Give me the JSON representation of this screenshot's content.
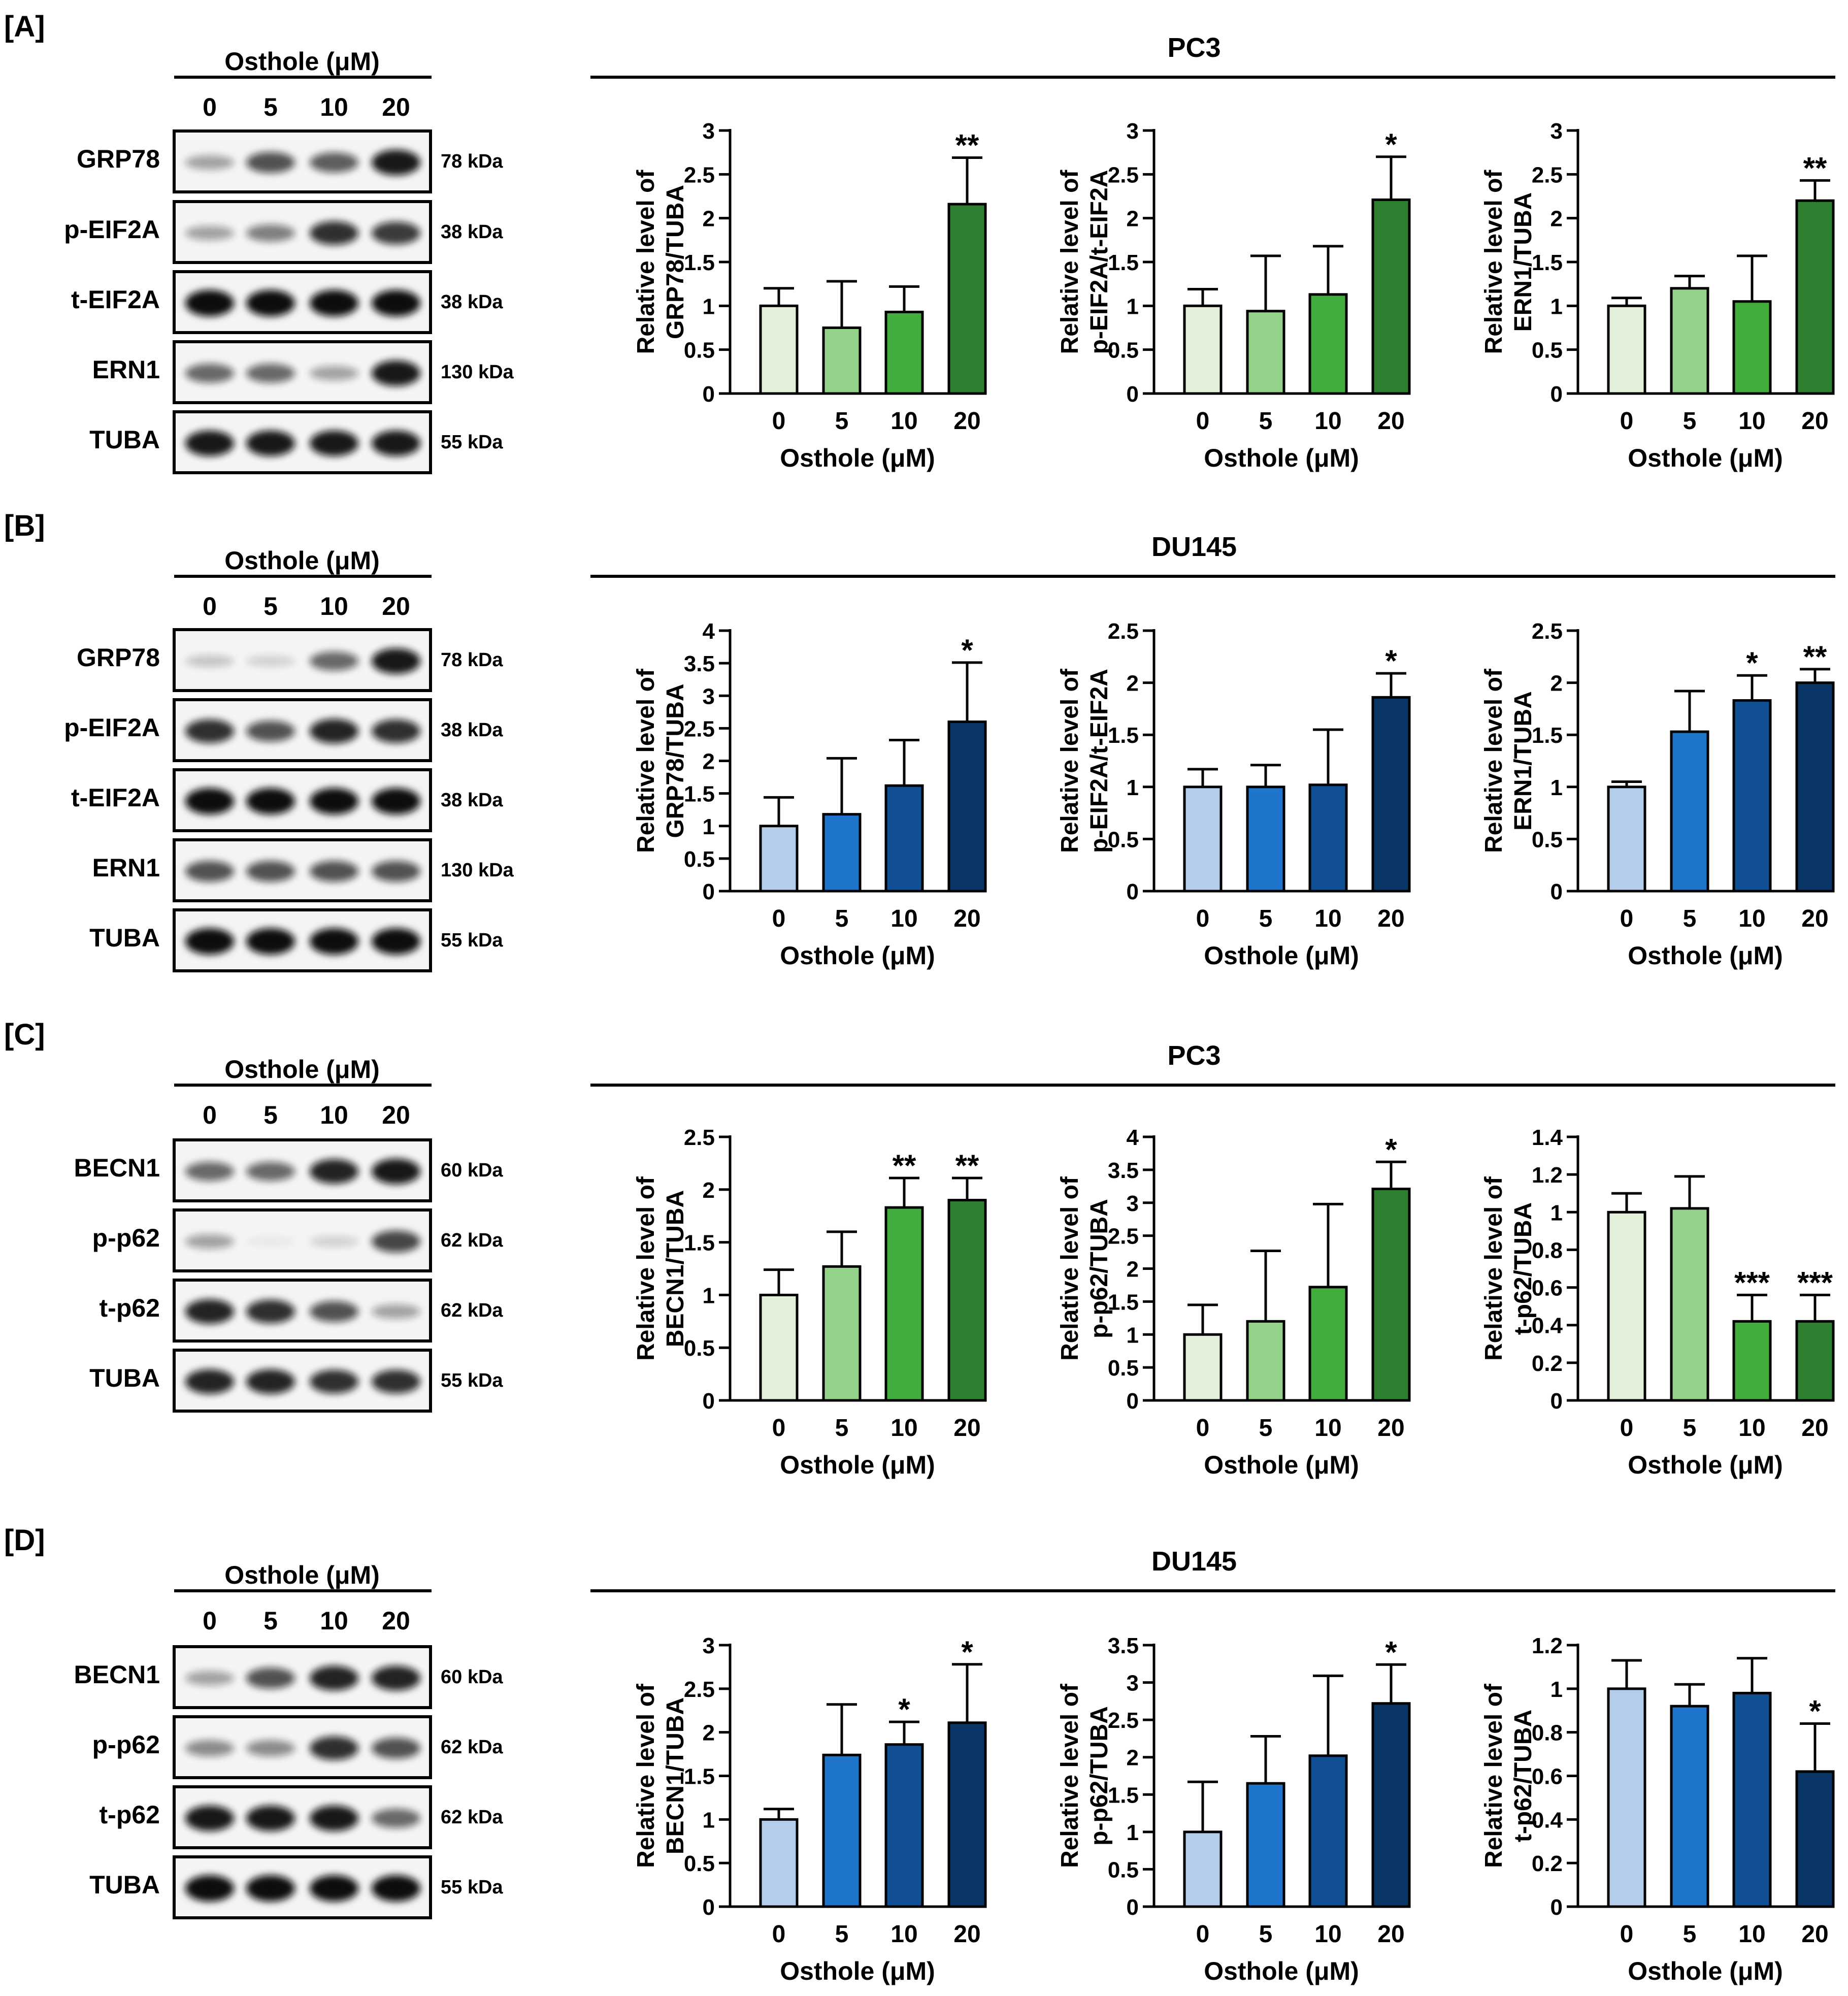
{
  "panels": [
    {
      "label": "[A]",
      "cell_line": "PC3",
      "treatment_header": "Osthole (μM)",
      "doses": [
        "0",
        "5",
        "10",
        "20"
      ],
      "blots": [
        {
          "protein": "GRP78",
          "kda": "78 kDa",
          "intensity": [
            0.35,
            0.7,
            0.65,
            0.95
          ]
        },
        {
          "protein": "p-EIF2A",
          "kda": "38 kDa",
          "intensity": [
            0.35,
            0.5,
            0.85,
            0.8
          ]
        },
        {
          "protein": "t-EIF2A",
          "kda": "38 kDa",
          "intensity": [
            1,
            1,
            1,
            1
          ]
        },
        {
          "protein": "ERN1",
          "kda": "130 kDa",
          "intensity": [
            0.6,
            0.6,
            0.35,
            0.95
          ]
        },
        {
          "protein": "TUBA",
          "kda": "55 kDa",
          "intensity": [
            0.95,
            0.95,
            0.95,
            0.95
          ]
        }
      ]
    },
    {
      "label": "[B]",
      "cell_line": "DU145",
      "treatment_header": "Osthole (μM)",
      "doses": [
        "0",
        "5",
        "10",
        "20"
      ],
      "blots": [
        {
          "protein": "GRP78",
          "kda": "78 kDa",
          "intensity": [
            0.2,
            0.15,
            0.6,
            0.95
          ]
        },
        {
          "protein": "p-EIF2A",
          "kda": "38 kDa",
          "intensity": [
            0.85,
            0.7,
            0.9,
            0.85
          ]
        },
        {
          "protein": "t-EIF2A",
          "kda": "38 kDa",
          "intensity": [
            1,
            1,
            1,
            1
          ]
        },
        {
          "protein": "ERN1",
          "kda": "130 kDa",
          "intensity": [
            0.7,
            0.7,
            0.7,
            0.7
          ]
        },
        {
          "protein": "TUBA",
          "kda": "55 kDa",
          "intensity": [
            1,
            1,
            1,
            1
          ]
        }
      ]
    },
    {
      "label": "[C]",
      "cell_line": "PC3",
      "treatment_header": "Osthole (μM)",
      "doses": [
        "0",
        "5",
        "10",
        "20"
      ],
      "blots": [
        {
          "protein": "BECN1",
          "kda": "60 kDa",
          "intensity": [
            0.6,
            0.6,
            0.9,
            0.95
          ]
        },
        {
          "protein": "p-p62",
          "kda": "62 kDa",
          "intensity": [
            0.35,
            0.05,
            0.15,
            0.75
          ]
        },
        {
          "protein": "t-p62",
          "kda": "62 kDa",
          "intensity": [
            0.9,
            0.85,
            0.7,
            0.35
          ]
        },
        {
          "protein": "TUBA",
          "kda": "55 kDa",
          "intensity": [
            0.9,
            0.9,
            0.85,
            0.85
          ]
        }
      ]
    },
    {
      "label": "[D]",
      "cell_line": "DU145",
      "treatment_header": "Osthole (μM)",
      "doses": [
        "0",
        "5",
        "10",
        "20"
      ],
      "blots": [
        {
          "protein": "BECN1",
          "kda": "60 kDa",
          "intensity": [
            0.35,
            0.7,
            0.9,
            0.9
          ]
        },
        {
          "protein": "p-p62",
          "kda": "62 kDa",
          "intensity": [
            0.45,
            0.45,
            0.85,
            0.7
          ]
        },
        {
          "protein": "t-p62",
          "kda": "62 kDa",
          "intensity": [
            0.95,
            0.95,
            0.95,
            0.6
          ]
        },
        {
          "protein": "TUBA",
          "kda": "55 kDa",
          "intensity": [
            1,
            1,
            1,
            1
          ]
        }
      ]
    }
  ],
  "colors": {
    "green": [
      "#e2f0d9",
      "#94d289",
      "#41ad3c",
      "#2e8030"
    ],
    "blue": [
      "#b4cdea",
      "#1f74cc",
      "#114f94",
      "#0a3567"
    ]
  },
  "chart_data": [
    {
      "panel": "A",
      "palette": "green",
      "type": "bar",
      "categories": [
        "0",
        "5",
        "10",
        "20"
      ],
      "values": [
        1.0,
        0.75,
        0.93,
        2.16
      ],
      "errors": [
        0.2,
        0.53,
        0.29,
        0.53
      ],
      "significance": [
        "",
        "",
        "",
        "**"
      ],
      "ylabel_lines": [
        "Relative level of",
        "GRP78/TUBA"
      ],
      "xlabel": "Osthole (μM)",
      "ylim": [
        0,
        3
      ],
      "yticks": [
        "0",
        "0.5",
        "1",
        "1.5",
        "2",
        "2.5",
        "3"
      ]
    },
    {
      "panel": "A",
      "palette": "green",
      "type": "bar",
      "categories": [
        "0",
        "5",
        "10",
        "20"
      ],
      "values": [
        1.0,
        0.94,
        1.13,
        2.21
      ],
      "errors": [
        0.19,
        0.63,
        0.55,
        0.49
      ],
      "significance": [
        "",
        "",
        "",
        "*"
      ],
      "ylabel_lines": [
        "Relative level of",
        "p-EIF2A/t-EIF2A"
      ],
      "xlabel": "Osthole (μM)",
      "ylim": [
        0,
        3
      ],
      "yticks": [
        "0",
        "0.5",
        "1",
        "1.5",
        "2",
        "2.5",
        "3"
      ]
    },
    {
      "panel": "A",
      "palette": "green",
      "type": "bar",
      "categories": [
        "0",
        "5",
        "10",
        "20"
      ],
      "values": [
        1.0,
        1.2,
        1.05,
        2.2
      ],
      "errors": [
        0.09,
        0.14,
        0.52,
        0.23
      ],
      "significance": [
        "",
        "",
        "",
        "**"
      ],
      "ylabel_lines": [
        "Relative level of",
        "ERN1/TUBA"
      ],
      "xlabel": "Osthole (μM)",
      "ylim": [
        0,
        3
      ],
      "yticks": [
        "0",
        "0.5",
        "1",
        "1.5",
        "2",
        "2.5",
        "3"
      ]
    },
    {
      "panel": "B",
      "palette": "blue",
      "type": "bar",
      "categories": [
        "0",
        "5",
        "10",
        "20"
      ],
      "values": [
        1.0,
        1.18,
        1.62,
        2.6
      ],
      "errors": [
        0.44,
        0.86,
        0.7,
        0.91
      ],
      "significance": [
        "",
        "",
        "",
        "*"
      ],
      "ylabel_lines": [
        "Relative level of",
        "GRP78/TUBA"
      ],
      "xlabel": "Osthole (μM)",
      "ylim": [
        0,
        4
      ],
      "yticks": [
        "0",
        "0.5",
        "1",
        "1.5",
        "2",
        "2.5",
        "3",
        "3.5",
        "4"
      ]
    },
    {
      "panel": "B",
      "palette": "blue",
      "type": "bar",
      "categories": [
        "0",
        "5",
        "10",
        "20"
      ],
      "values": [
        1.0,
        1.0,
        1.02,
        1.86
      ],
      "errors": [
        0.17,
        0.21,
        0.53,
        0.23
      ],
      "significance": [
        "",
        "",
        "",
        "*"
      ],
      "ylabel_lines": [
        "Relative level of",
        "p-EIF2A/t-EIF2A"
      ],
      "xlabel": "Osthole (μM)",
      "ylim": [
        0,
        2.5
      ],
      "yticks": [
        "0",
        "0.5",
        "1",
        "1.5",
        "2",
        "2.5"
      ]
    },
    {
      "panel": "B",
      "palette": "blue",
      "type": "bar",
      "categories": [
        "0",
        "5",
        "10",
        "20"
      ],
      "values": [
        1.0,
        1.53,
        1.83,
        2.0
      ],
      "errors": [
        0.05,
        0.39,
        0.24,
        0.13
      ],
      "significance": [
        "",
        "",
        "*",
        "**"
      ],
      "ylabel_lines": [
        "Relative level of",
        "ERN1/TUBA"
      ],
      "xlabel": "Osthole (μM)",
      "ylim": [
        0,
        2.5
      ],
      "yticks": [
        "0",
        "0.5",
        "1",
        "1.5",
        "2",
        "2.5"
      ]
    },
    {
      "panel": "C",
      "palette": "green",
      "type": "bar",
      "categories": [
        "0",
        "5",
        "10",
        "20"
      ],
      "values": [
        1.0,
        1.27,
        1.83,
        1.9
      ],
      "errors": [
        0.24,
        0.33,
        0.28,
        0.21
      ],
      "significance": [
        "",
        "",
        "**",
        "**"
      ],
      "ylabel_lines": [
        "Relative level of",
        "BECN1/TUBA"
      ],
      "xlabel": "Osthole (μM)",
      "ylim": [
        0,
        2.5
      ],
      "yticks": [
        "0",
        "0.5",
        "1",
        "1.5",
        "2",
        "2.5"
      ]
    },
    {
      "panel": "C",
      "palette": "green",
      "type": "bar",
      "categories": [
        "0",
        "5",
        "10",
        "20"
      ],
      "values": [
        1.0,
        1.2,
        1.72,
        3.21
      ],
      "errors": [
        0.45,
        1.07,
        1.26,
        0.41
      ],
      "significance": [
        "",
        "",
        "",
        "*"
      ],
      "ylabel_lines": [
        "Relative level of",
        "p-p62/TUBA"
      ],
      "xlabel": "Osthole (μM)",
      "ylim": [
        0,
        4
      ],
      "yticks": [
        "0",
        "0.5",
        "1",
        "1.5",
        "2",
        "2.5",
        "3",
        "3.5",
        "4"
      ]
    },
    {
      "panel": "C",
      "palette": "green",
      "type": "bar",
      "categories": [
        "0",
        "5",
        "10",
        "20"
      ],
      "values": [
        1.0,
        1.02,
        0.42,
        0.42
      ],
      "errors": [
        0.1,
        0.17,
        0.14,
        0.14
      ],
      "significance": [
        "",
        "",
        "***",
        "***"
      ],
      "ylabel_lines": [
        "Relative level of",
        "t-p62/TUBA"
      ],
      "xlabel": "Osthole (μM)",
      "ylim": [
        0,
        1.4
      ],
      "yticks": [
        "0",
        "0.2",
        "0.4",
        "0.6",
        "0.8",
        "1",
        "1.2",
        "1.4"
      ]
    },
    {
      "panel": "D",
      "palette": "blue",
      "type": "bar",
      "categories": [
        "0",
        "5",
        "10",
        "20"
      ],
      "values": [
        1.0,
        1.74,
        1.86,
        2.11
      ],
      "errors": [
        0.12,
        0.58,
        0.26,
        0.67
      ],
      "significance": [
        "",
        "",
        "*",
        "*"
      ],
      "ylabel_lines": [
        "Relative level of",
        "BECN1/TUBA"
      ],
      "xlabel": "Osthole (μM)",
      "ylim": [
        0,
        3
      ],
      "yticks": [
        "0",
        "0.5",
        "1",
        "1.5",
        "2",
        "2.5",
        "3"
      ]
    },
    {
      "panel": "D",
      "palette": "blue",
      "type": "bar",
      "categories": [
        "0",
        "5",
        "10",
        "20"
      ],
      "values": [
        1.0,
        1.65,
        2.02,
        2.72
      ],
      "errors": [
        0.67,
        0.63,
        1.07,
        0.52
      ],
      "significance": [
        "",
        "",
        "",
        "*"
      ],
      "ylabel_lines": [
        "Relative level of",
        "p-p62/TUBA"
      ],
      "xlabel": "Osthole (μM)",
      "ylim": [
        0,
        3.5
      ],
      "yticks": [
        "0",
        "0.5",
        "1",
        "1.5",
        "2",
        "2.5",
        "3",
        "3.5"
      ]
    },
    {
      "panel": "D",
      "palette": "blue",
      "type": "bar",
      "categories": [
        "0",
        "5",
        "10",
        "20"
      ],
      "values": [
        1.0,
        0.92,
        0.98,
        0.62
      ],
      "errors": [
        0.13,
        0.1,
        0.16,
        0.22
      ],
      "significance": [
        "",
        "",
        "",
        "*"
      ],
      "ylabel_lines": [
        "Relative level of",
        "t-p62/TUBA"
      ],
      "xlabel": "Osthole (μM)",
      "ylim": [
        0,
        1.2
      ],
      "yticks": [
        "0",
        "0.2",
        "0.4",
        "0.6",
        "0.8",
        "1",
        "1.2"
      ]
    }
  ]
}
